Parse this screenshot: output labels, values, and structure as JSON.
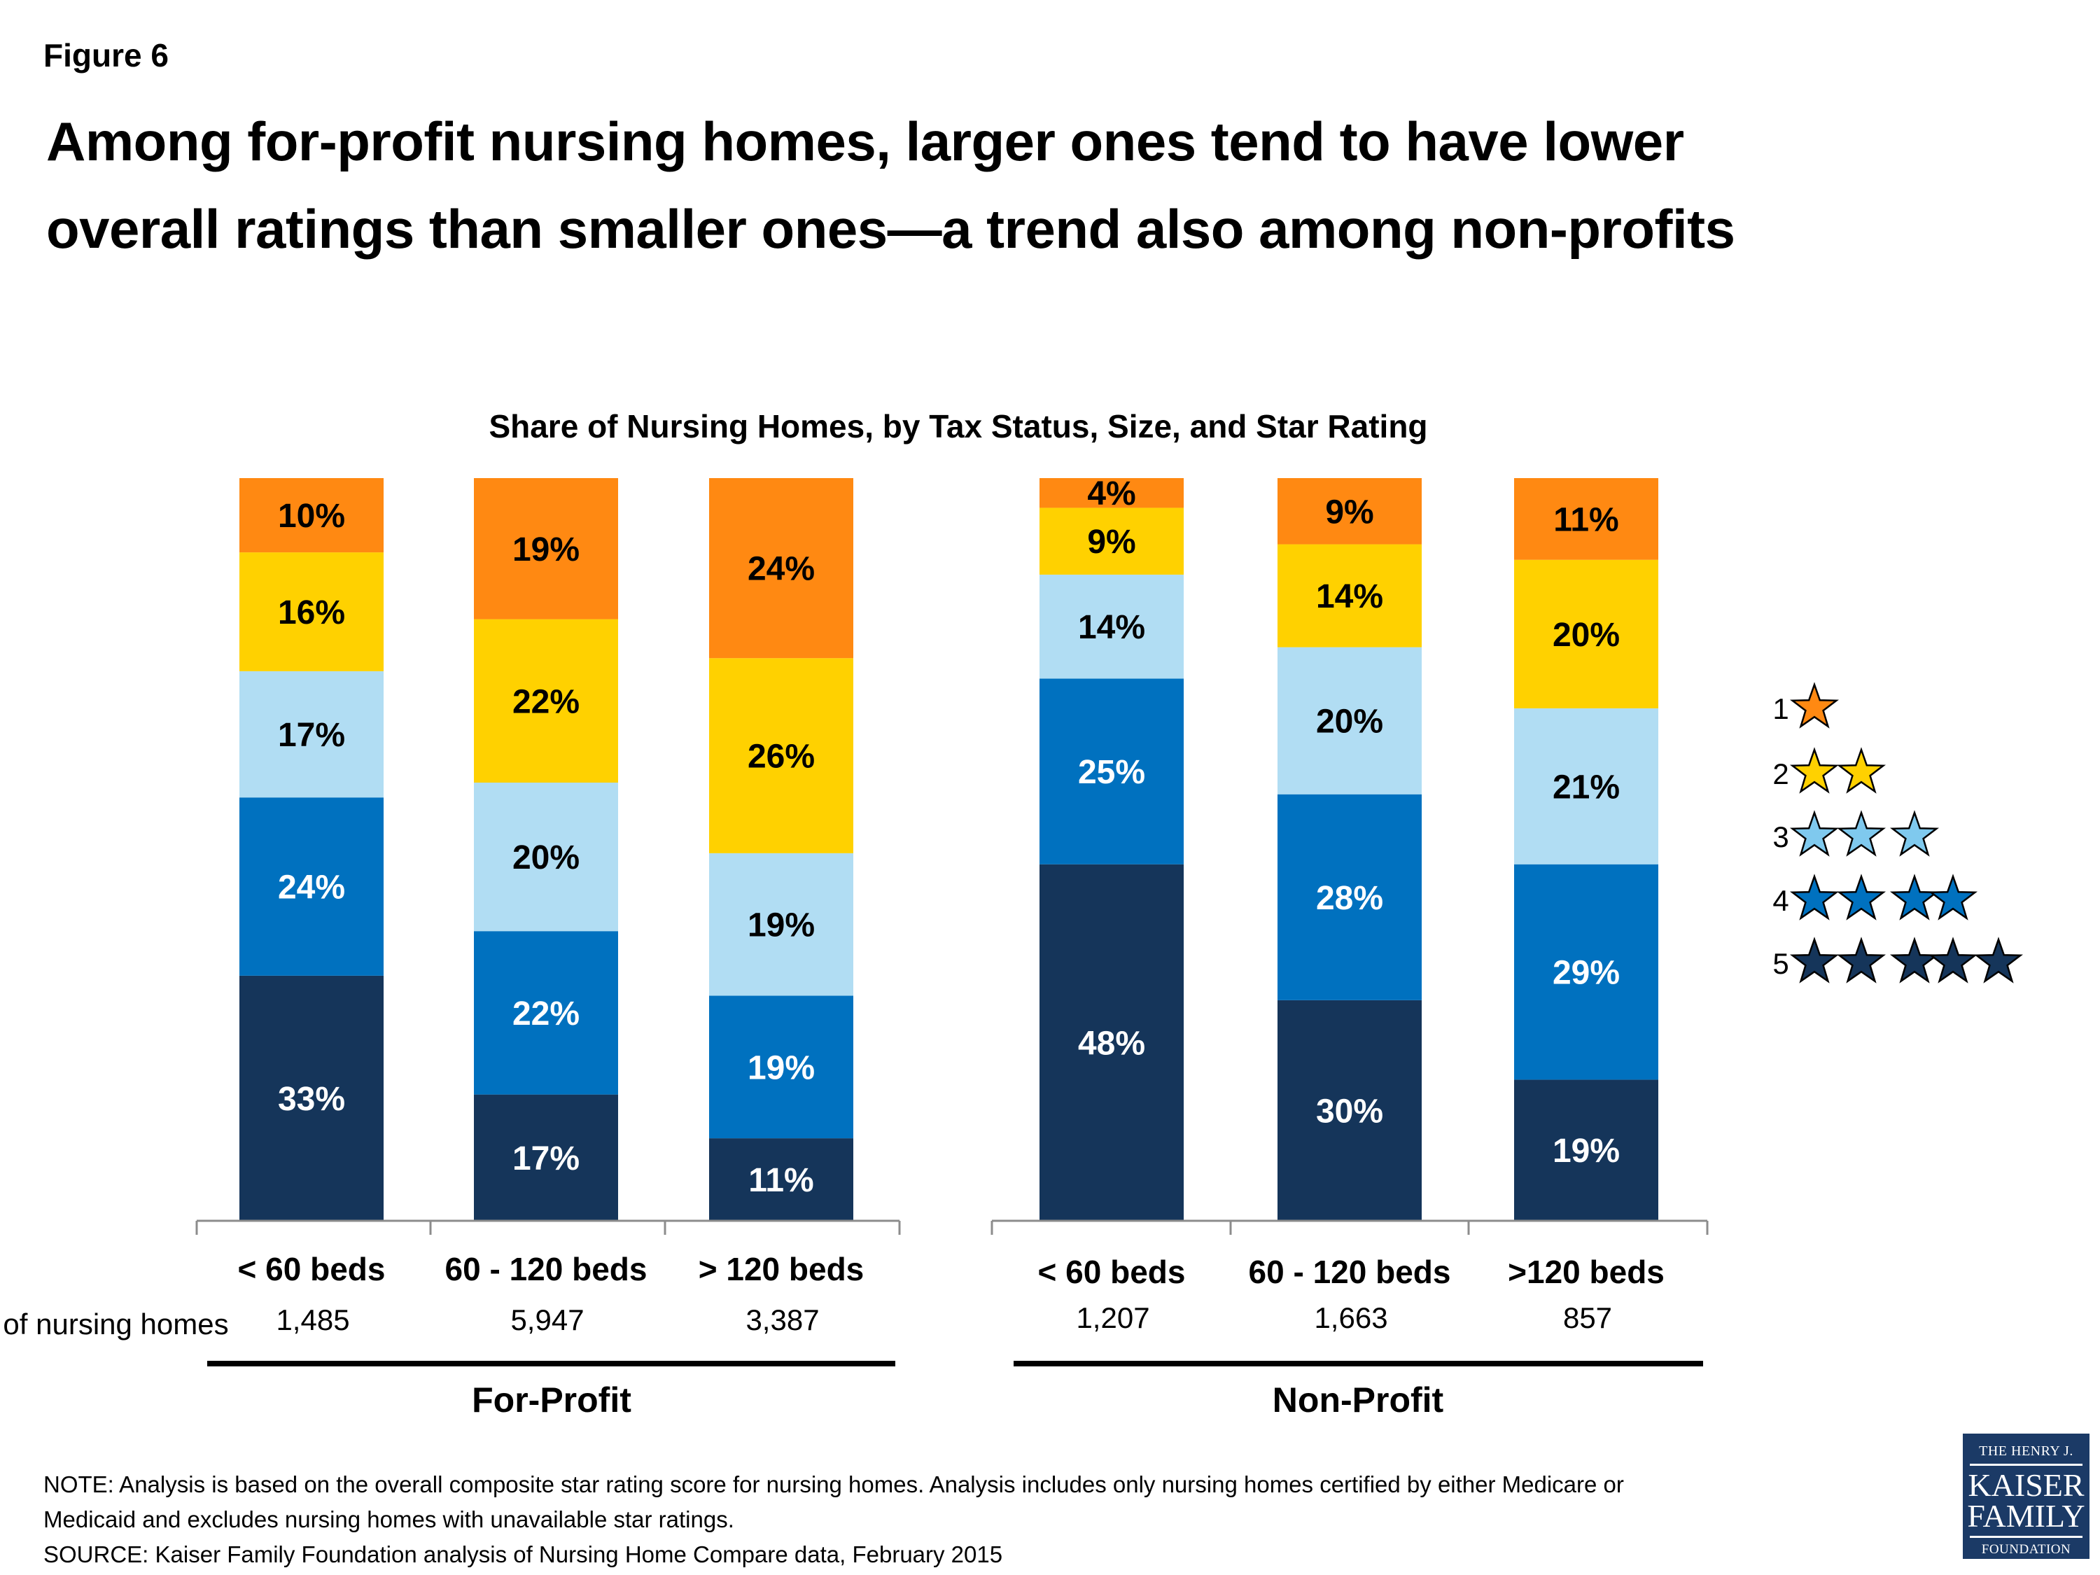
{
  "figure_label": "Figure 6",
  "title_lines": [
    "Among for-profit nursing homes, larger ones tend to have lower",
    "overall ratings than smaller ones—a trend also among non-profits"
  ],
  "chart_data": {
    "type": "bar",
    "stacked": true,
    "normalized": true,
    "title": "Share of Nursing Homes, by Tax Status, Size, and Star Rating",
    "groups": [
      {
        "name": "For-Profit",
        "categories": [
          "< 60 beds",
          "60 - 120 beds",
          "> 120 beds"
        ],
        "counts": [
          "1,485",
          "5,947",
          "3,387"
        ]
      },
      {
        "name": "Non-Profit",
        "categories": [
          "< 60 beds",
          "60 - 120 beds",
          ">120 beds"
        ],
        "counts": [
          "1,207",
          "1,663",
          "857"
        ]
      }
    ],
    "series": [
      {
        "name": "1",
        "stars": 1,
        "color": "#FF8912",
        "label_color": "#000000",
        "values": [
          10,
          19,
          24,
          4,
          9,
          11
        ]
      },
      {
        "name": "2",
        "stars": 2,
        "color": "#FFD100",
        "label_color": "#000000",
        "values": [
          16,
          22,
          26,
          9,
          14,
          20
        ]
      },
      {
        "name": "3",
        "stars": 3,
        "color": "#B1DDF3",
        "label_color": "#000000",
        "values": [
          17,
          20,
          19,
          14,
          20,
          21
        ]
      },
      {
        "name": "4",
        "stars": 4,
        "color": "#0071BF",
        "label_color": "#FFFFFF",
        "values": [
          24,
          22,
          19,
          25,
          28,
          29
        ]
      },
      {
        "name": "5",
        "stars": 5,
        "color": "#15355A",
        "label_color": "#FFFFFF",
        "values": [
          33,
          17,
          11,
          48,
          30,
          19
        ]
      }
    ],
    "value_suffix": "%",
    "ylim": [
      0,
      100
    ],
    "grid": false,
    "legend_position": "right",
    "legend_star_colors": [
      "#FF8912",
      "#FFD100",
      "#7FC9EE",
      "#0071BF",
      "#15355A"
    ],
    "row_label": "# of nursing homes"
  },
  "notes": [
    "NOTE: Analysis is based on the overall composite star rating score for nursing homes. Analysis includes only nursing homes certified by either Medicare or",
    "Medicaid and excludes nursing homes with unavailable star ratings.",
    "SOURCE: Kaiser Family Foundation analysis of Nursing Home Compare data, February 2015"
  ],
  "logo": {
    "line1": "THE HENRY J.",
    "line2": "KAISER",
    "line3": "FAMILY",
    "line4": "FOUNDATION"
  }
}
